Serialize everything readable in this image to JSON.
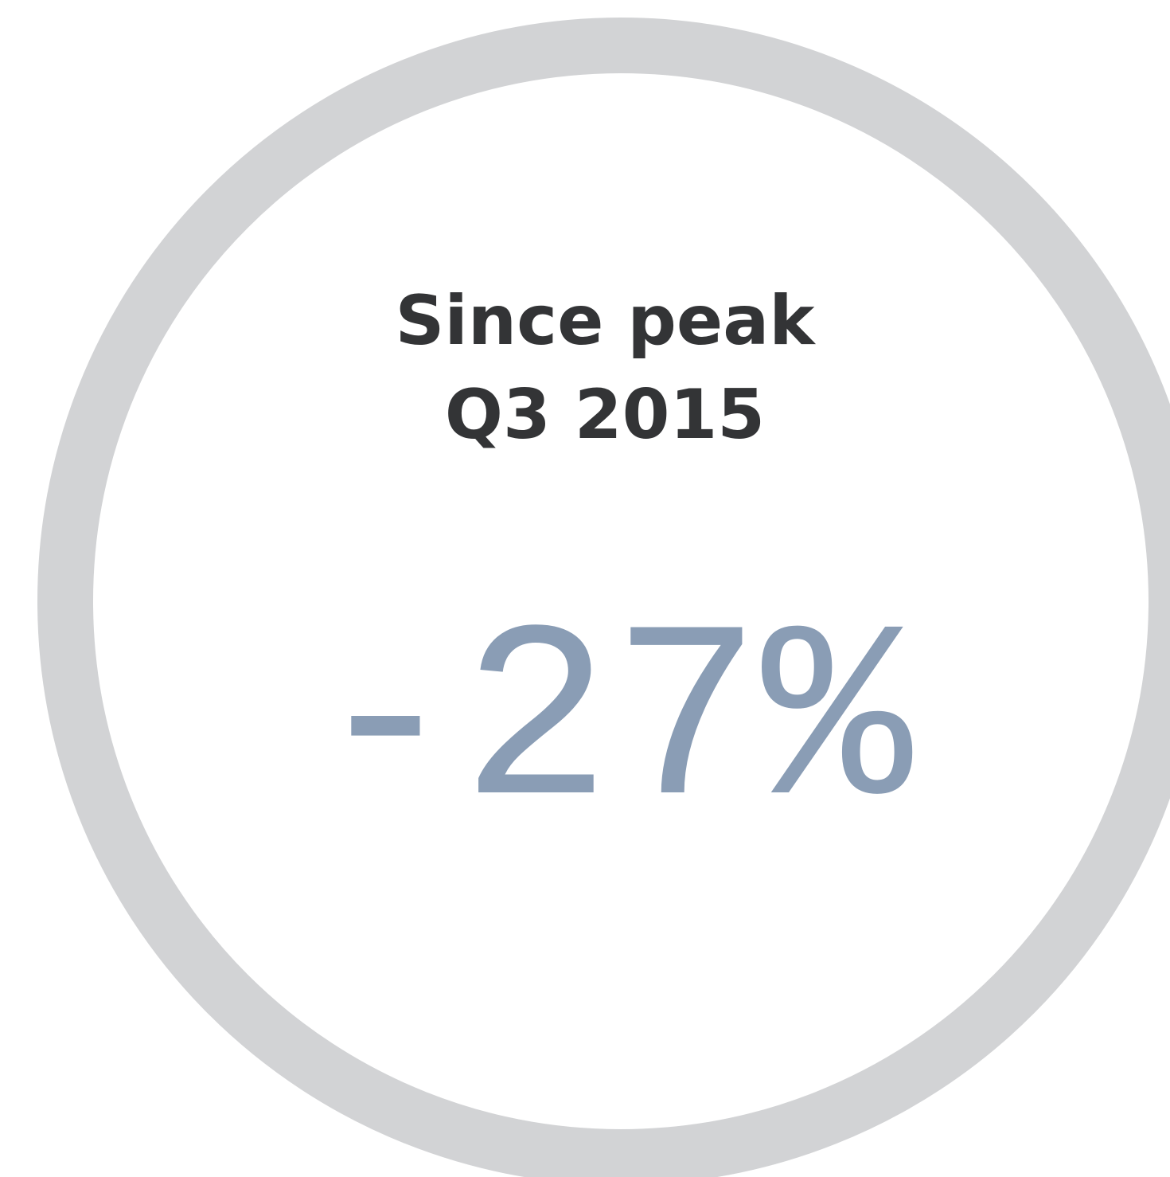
{
  "label": {
    "line1": "Since peak",
    "line2": "Q3 2015"
  },
  "stat": "-27%"
}
